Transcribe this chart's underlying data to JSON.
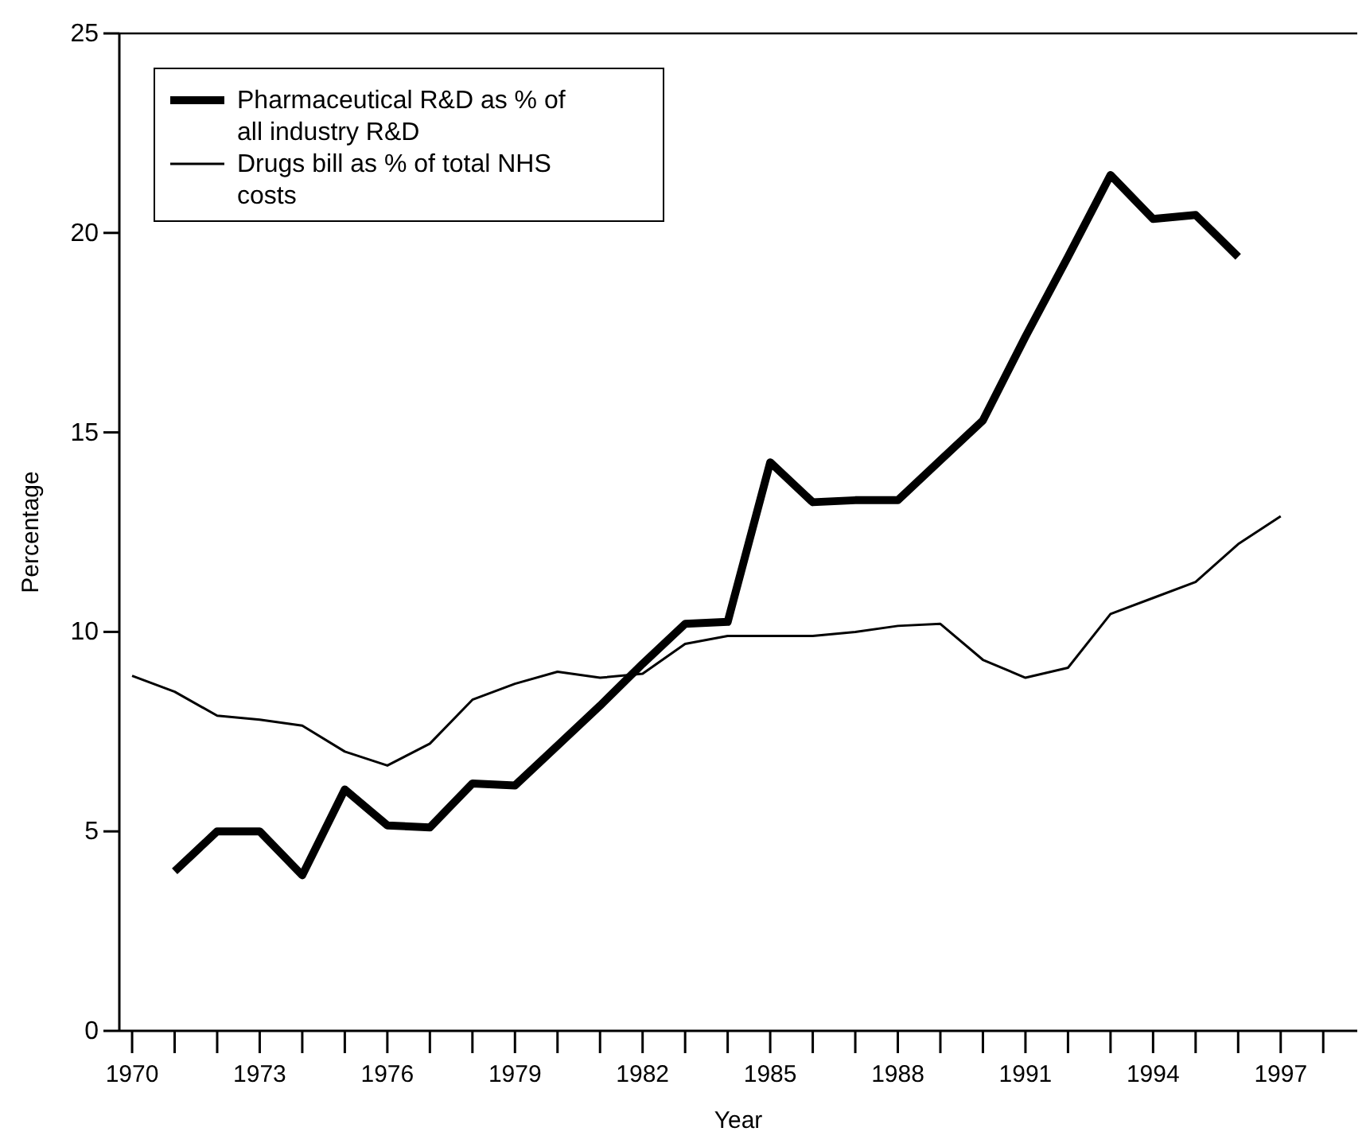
{
  "chart_data": {
    "type": "line",
    "xlabel": "Year",
    "ylabel": "Percentage",
    "xlim": [
      1969.7,
      1998.8
    ],
    "xticks": [
      1970,
      {
        "value": 1971,
        "label": null
      },
      {
        "value": 1972,
        "label": null
      },
      1973,
      {
        "value": 1974,
        "label": null
      },
      {
        "value": 1975,
        "label": null
      },
      1976,
      {
        "value": 1977,
        "label": null
      },
      {
        "value": 1978,
        "label": null
      },
      1979,
      {
        "value": 1980,
        "label": null
      },
      {
        "value": 1981,
        "label": null
      },
      1982,
      {
        "value": 1983,
        "label": null
      },
      {
        "value": 1984,
        "label": null
      },
      1985,
      {
        "value": 1986,
        "label": null
      },
      {
        "value": 1987,
        "label": null
      },
      1988,
      {
        "value": 1989,
        "label": null
      },
      {
        "value": 1990,
        "label": null
      },
      1991,
      {
        "value": 1992,
        "label": null
      },
      {
        "value": 1993,
        "label": null
      },
      1994,
      {
        "value": 1995,
        "label": null
      },
      {
        "value": 1996,
        "label": null
      },
      1997,
      {
        "value": 1998,
        "label": null
      }
    ],
    "ylim": [
      0,
      25
    ],
    "yticks": [
      0,
      5,
      10,
      15,
      20,
      25
    ],
    "grid": false,
    "legend": "top left",
    "marker": "none",
    "line_style": "solid",
    "series": [
      {
        "name": "Pharmaceutical R&D as % of all industry R&D",
        "color": "#000000",
        "x": [
          1971,
          1972,
          1973,
          1974,
          1975,
          1976,
          1977,
          1978,
          1979,
          1980,
          1981,
          1982,
          1983,
          1984,
          1985,
          1986,
          1987,
          1988,
          1989,
          1990,
          1991,
          1992,
          1993,
          1994,
          1995,
          1996
        ],
        "values": [
          4.0,
          5.0,
          5.0,
          3.9,
          6.05,
          5.15,
          5.1,
          6.2,
          6.15,
          7.15,
          8.15,
          9.2,
          10.2,
          10.25,
          14.25,
          13.25,
          13.3,
          13.3,
          14.3,
          15.3,
          17.4,
          19.4,
          21.45,
          20.35,
          20.45,
          19.4
        ]
      },
      {
        "name": "Drugs bill as % of total NHS costs",
        "color": "#000000",
        "x": [
          1970,
          1971,
          1972,
          1973,
          1974,
          1975,
          1976,
          1977,
          1978,
          1979,
          1980,
          1981,
          1982,
          1983,
          1984,
          1985,
          1986,
          1987,
          1988,
          1989,
          1990,
          1991,
          1992,
          1993,
          1994,
          1995,
          1996,
          1997
        ],
        "values": [
          8.9,
          8.5,
          7.9,
          7.8,
          7.65,
          7.0,
          6.65,
          7.2,
          8.3,
          8.7,
          9.0,
          8.85,
          8.95,
          9.7,
          9.9,
          9.9,
          9.9,
          10.0,
          10.15,
          10.2,
          9.3,
          8.85,
          9.1,
          10.45,
          10.85,
          11.25,
          12.2,
          12.9
        ]
      }
    ]
  }
}
